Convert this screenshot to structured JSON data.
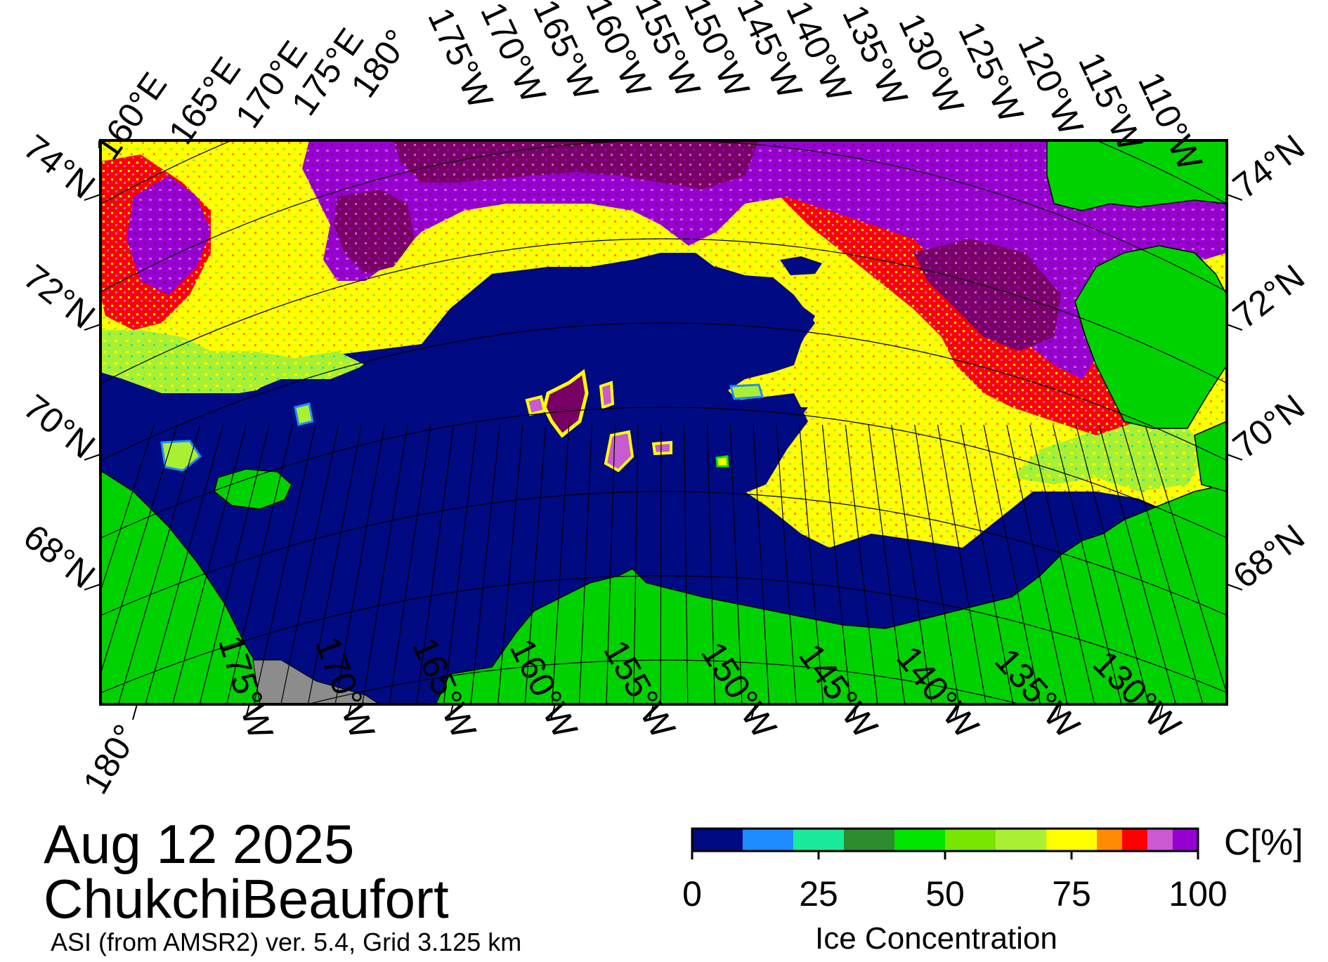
{
  "map": {
    "date": "Aug 12 2025",
    "region": "ChukchiBeaufort",
    "source_note": "ASI (from AMSR2) ver. 5.4,  Grid 3.125 km",
    "colors": {
      "open_water": "#000a82",
      "land": "#00d200",
      "no_data": "#8c8c8c",
      "frame": "#000000"
    },
    "top_lon_labels": [
      "160°E",
      "165°E",
      "170°E",
      "175°E",
      "180°",
      "175°W",
      "170°W",
      "165°W",
      "160°W",
      "155°W",
      "150°W",
      "145°W",
      "140°W",
      "135°W",
      "130°W",
      "125°W",
      "120°W",
      "115°W",
      "110°W"
    ],
    "bottom_lon_labels": [
      "180°",
      "175°W",
      "170°W",
      "165°W",
      "160°W",
      "155°W",
      "150°W",
      "145°W",
      "140°W",
      "135°W",
      "130°W"
    ],
    "left_lat_labels": [
      "74°N",
      "72°N",
      "70°N",
      "68°N"
    ],
    "right_lat_labels": [
      "74°N",
      "72°N",
      "70°N",
      "68°N"
    ]
  },
  "colorbar": {
    "title": "Ice Concentration",
    "unit": "C[%]",
    "ticks": [
      "0",
      "25",
      "50",
      "75",
      "100"
    ],
    "bins": [
      {
        "from": 0,
        "to": 10,
        "color": "#000a82"
      },
      {
        "from": 10,
        "to": 20,
        "color": "#1e8cff"
      },
      {
        "from": 20,
        "to": 30,
        "color": "#19eb9b"
      },
      {
        "from": 30,
        "to": 40,
        "color": "#2d8c2d"
      },
      {
        "from": 40,
        "to": 50,
        "color": "#00e600"
      },
      {
        "from": 50,
        "to": 60,
        "color": "#78e600"
      },
      {
        "from": 60,
        "to": 70,
        "color": "#aaf032"
      },
      {
        "from": 70,
        "to": 80,
        "color": "#ffff00"
      },
      {
        "from": 80,
        "to": 85,
        "color": "#ff8c00"
      },
      {
        "from": 85,
        "to": 90,
        "color": "#ff0000"
      },
      {
        "from": 90,
        "to": 95,
        "color": "#c85ad2"
      },
      {
        "from": 95,
        "to": 100,
        "color": "#9600d2"
      }
    ]
  }
}
